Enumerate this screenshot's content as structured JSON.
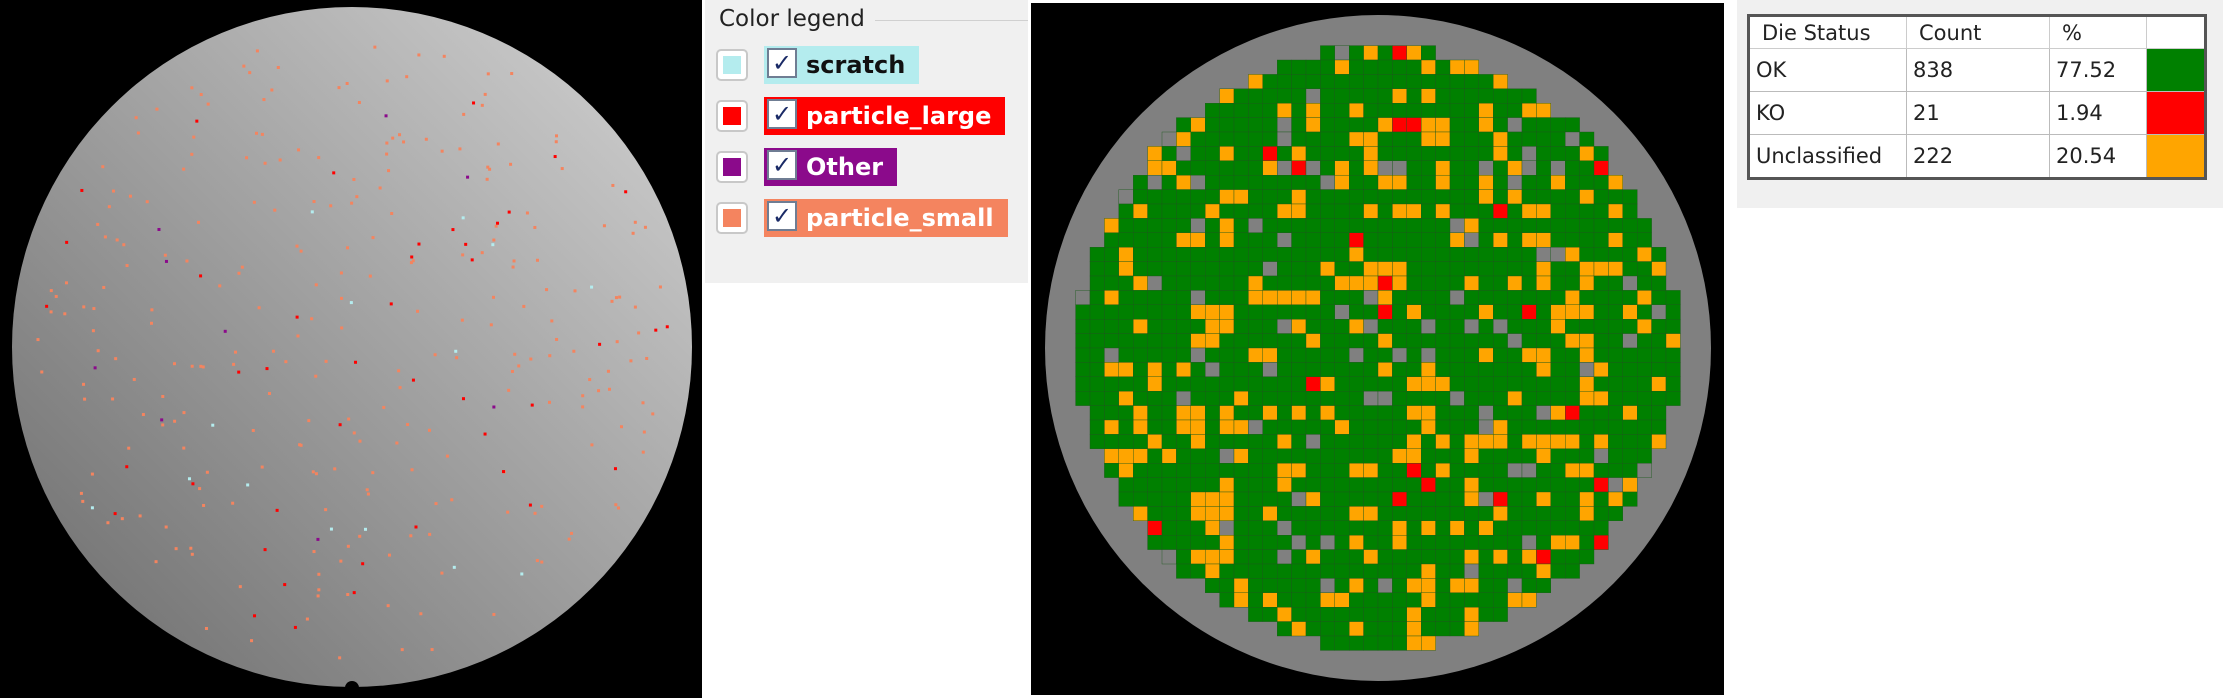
{
  "legend": {
    "title": "Color legend",
    "items": [
      {
        "label": "scratch",
        "color": "#b4ecee"
      },
      {
        "label": "particle_large",
        "color": "#ff0000"
      },
      {
        "label": "Other",
        "color": "#8b0a8b"
      },
      {
        "label": "particle_small",
        "color": "#f4845f"
      }
    ]
  },
  "table": {
    "columns": [
      "Die Status",
      "Count",
      "%"
    ],
    "rows": [
      {
        "status": "OK",
        "count": 838,
        "percent": 77.52,
        "color": "#008000"
      },
      {
        "status": "KO",
        "count": 21,
        "percent": 1.94,
        "color": "#ff0000"
      },
      {
        "status": "Unclassified",
        "count": 222,
        "percent": 20.54,
        "color": "#ffa500"
      }
    ]
  }
}
